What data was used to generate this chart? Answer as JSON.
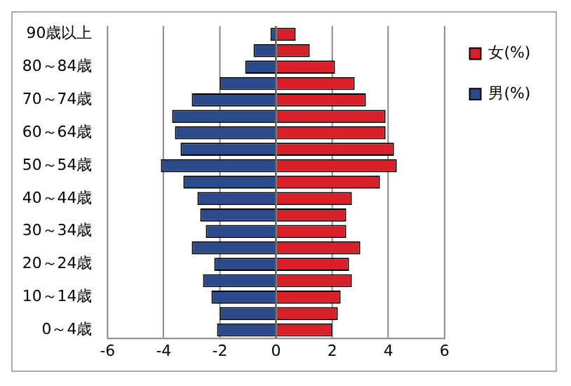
{
  "chart_data": {
    "type": "bar",
    "orientation": "horizontal",
    "stacked": true,
    "categories": [
      "90歳以上",
      null,
      "80～84歳",
      null,
      "70～74歳",
      null,
      "60～64歳",
      null,
      "50～54歳",
      null,
      "40～44歳",
      null,
      "30～34歳",
      null,
      "20～24歳",
      null,
      "10～14歳",
      null,
      "0～4歳"
    ],
    "series": [
      {
        "name": "女(%)",
        "color": "#d9202a",
        "values": [
          0.7,
          1.2,
          2.1,
          2.8,
          3.2,
          3.9,
          3.9,
          4.2,
          4.3,
          3.7,
          2.7,
          2.5,
          2.5,
          3.0,
          2.6,
          2.7,
          2.3,
          2.2,
          2.0
        ]
      },
      {
        "name": "男(%)",
        "color": "#2b4a8c",
        "values": [
          -0.2,
          -0.8,
          -1.1,
          -2.0,
          -3.0,
          -3.7,
          -3.6,
          -3.4,
          -4.1,
          -3.3,
          -2.8,
          -2.7,
          -2.5,
          -3.0,
          -2.2,
          -2.6,
          -2.3,
          -2.0,
          -2.1
        ]
      }
    ],
    "xlim": [
      -6,
      6
    ],
    "xticks": [
      -6,
      -4,
      -2,
      0,
      2,
      4,
      6
    ],
    "grid": "x",
    "legend": "right"
  }
}
